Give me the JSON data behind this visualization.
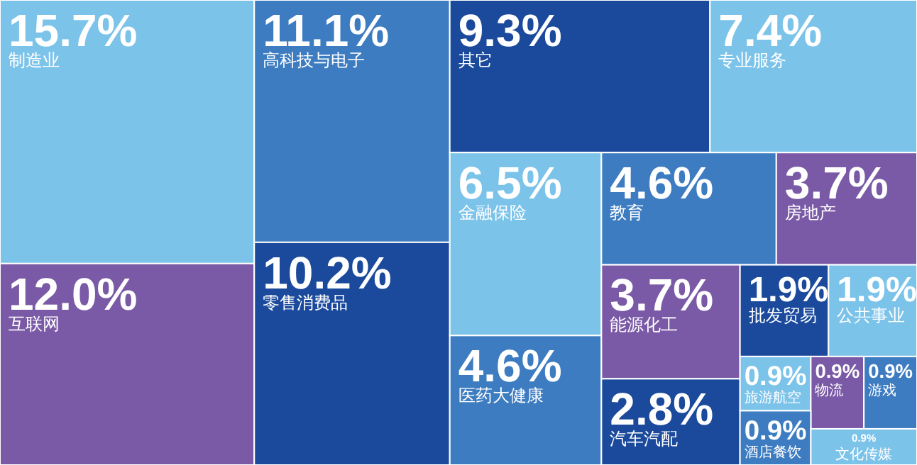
{
  "chart_data": {
    "type": "other",
    "categories": [
      "制造业",
      "高科技与电子",
      "其它",
      "专业服务",
      "互联网",
      "零售消费品",
      "金融保险",
      "教育",
      "房地产",
      "医药大健康",
      "能源化工",
      "汽车汽配",
      "批发贸易",
      "公共事业",
      "旅游航空",
      "物流",
      "游戏",
      "酒店餐饮",
      "文化传媒"
    ],
    "values": [
      15.7,
      11.1,
      9.3,
      7.4,
      12.0,
      10.2,
      6.5,
      4.6,
      3.7,
      4.6,
      3.7,
      2.8,
      1.9,
      1.9,
      0.9,
      0.9,
      0.9,
      0.9,
      0.9
    ],
    "value_labels": [
      "15.7%",
      "11.1%",
      "9.3%",
      "7.4%",
      "12.0%",
      "10.2%",
      "6.5%",
      "4.6%",
      "3.7%",
      "4.6%",
      "3.7%",
      "2.8%",
      "1.9%",
      "1.9%",
      "0.9%",
      "0.9%",
      "0.9%",
      "0.9%",
      "0.9%"
    ],
    "colors": [
      "#7cc3ea",
      "#3d7cc0",
      "#1b4a9c",
      "#7cc3ea",
      "#7a5aa6",
      "#1b4a9c",
      "#7cc3ea",
      "#3d7cc0",
      "#7a5aa6",
      "#3d7cc0",
      "#7a5aa6",
      "#1b4a9c",
      "#1b4a9c",
      "#7cc3ea",
      "#7cc3ea",
      "#7a5aa6",
      "#3d7cc0",
      "#3d7cc0",
      "#7cc3ea"
    ]
  }
}
